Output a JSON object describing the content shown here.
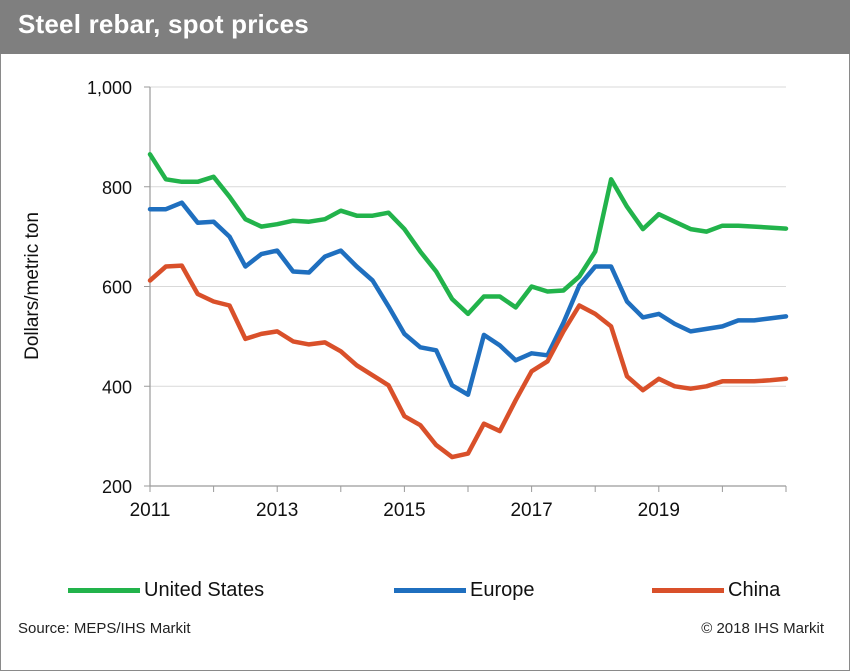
{
  "title": "Steel rebar, spot prices",
  "source": "Source: MEPS/IHS Markit",
  "copyright": "© 2018 IHS Markit",
  "colors": {
    "united_states": "#22b34b",
    "europe": "#1f6fbf",
    "china": "#d9502a",
    "title_bar": "#7f7f7f",
    "grid": "#d9d9d9"
  },
  "chart_data": {
    "type": "line",
    "title": "Steel rebar, spot prices",
    "xlabel": "",
    "ylabel": "Dollars/metric ton",
    "xlim": [
      2011,
      2021
    ],
    "ylim": [
      200,
      1000
    ],
    "x_ticks": [
      "2011",
      "2013",
      "2015",
      "2017",
      "2019"
    ],
    "y_ticks": [
      "200",
      "400",
      "600",
      "800",
      "1,000"
    ],
    "grid": true,
    "legend": "bottom",
    "x": [
      2011.0,
      2011.25,
      2011.5,
      2011.75,
      2012.0,
      2012.25,
      2012.5,
      2012.75,
      2013.0,
      2013.25,
      2013.5,
      2013.75,
      2014.0,
      2014.25,
      2014.5,
      2014.75,
      2015.0,
      2015.25,
      2015.5,
      2015.75,
      2016.0,
      2016.25,
      2016.5,
      2016.75,
      2017.0,
      2017.25,
      2017.5,
      2017.75,
      2018.0,
      2018.25,
      2018.5,
      2018.75,
      2019.0,
      2019.25,
      2019.5,
      2019.75,
      2020.0,
      2020.25,
      2020.5,
      2020.75,
      2021.0
    ],
    "series": [
      {
        "name": "United States",
        "values": [
          865,
          815,
          810,
          810,
          820,
          780,
          735,
          720,
          725,
          732,
          730,
          735,
          752,
          742,
          742,
          748,
          715,
          670,
          630,
          575,
          545,
          580,
          580,
          558,
          600,
          590,
          592,
          620,
          670,
          815,
          760,
          715,
          745,
          730,
          715,
          710,
          722,
          722,
          720,
          718,
          716
        ]
      },
      {
        "name": "Europe",
        "values": [
          755,
          755,
          768,
          728,
          730,
          700,
          640,
          665,
          672,
          630,
          628,
          660,
          672,
          640,
          612,
          560,
          505,
          478,
          472,
          402,
          383,
          503,
          482,
          452,
          466,
          462,
          527,
          602,
          640,
          640,
          570,
          538,
          545,
          525,
          510,
          515,
          520,
          532,
          532,
          536,
          540
        ]
      },
      {
        "name": "China",
        "values": [
          612,
          640,
          642,
          585,
          570,
          562,
          495,
          505,
          510,
          490,
          484,
          488,
          470,
          442,
          422,
          402,
          340,
          322,
          282,
          258,
          265,
          325,
          310,
          372,
          430,
          450,
          510,
          562,
          545,
          520,
          420,
          392,
          415,
          400,
          395,
          400,
          410,
          410,
          410,
          412,
          415
        ]
      }
    ]
  },
  "legend": {
    "united_states": "United States",
    "europe": "Europe",
    "china": "China"
  }
}
